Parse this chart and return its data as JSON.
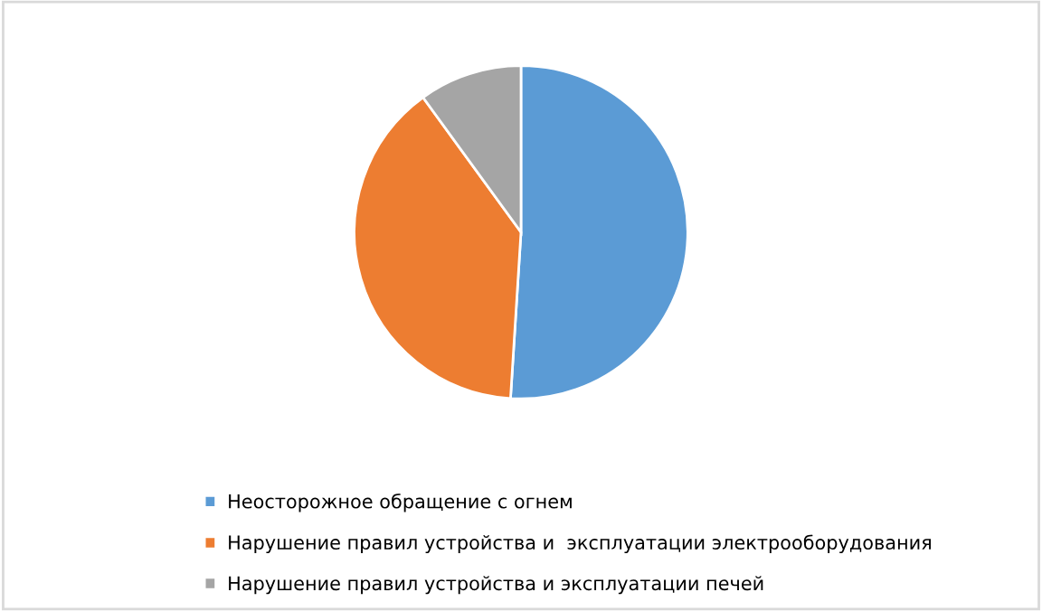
{
  "chart_data": {
    "type": "pie",
    "categories": [
      "Неосторожное обращение с огнем",
      "Нарушение правил устройства и  эксплуатации электрооборудования",
      "Нарушение правил устройства и эксплуатации печей"
    ],
    "values": [
      51,
      39,
      10
    ],
    "colors": [
      "#5b9bd5",
      "#ed7d31",
      "#a5a5a5"
    ],
    "legend": "bottom"
  }
}
